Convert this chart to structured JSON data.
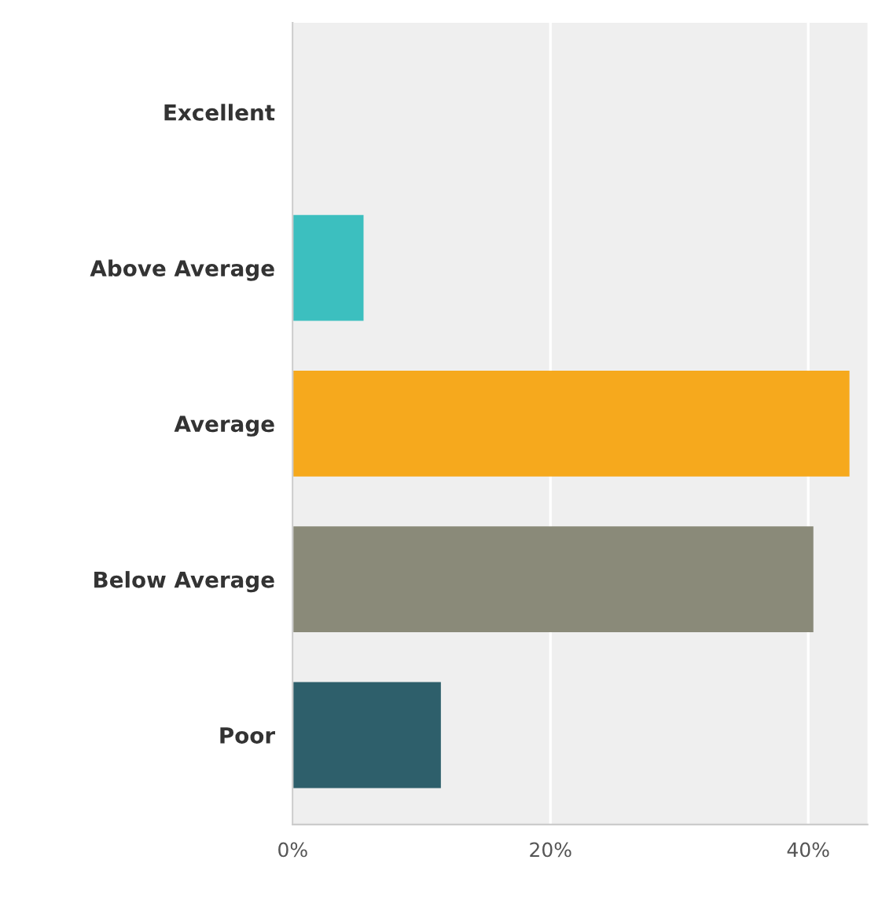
{
  "chart_data": {
    "type": "bar",
    "orientation": "horizontal",
    "categories": [
      "Excellent",
      "Above Average",
      "Average",
      "Below Average",
      "Poor"
    ],
    "values": [
      0,
      5.5,
      43.2,
      40.4,
      11.5
    ],
    "colors": [
      "#3cbfbf",
      "#3cbfbf",
      "#f6a91d",
      "#8a8a79",
      "#2e5f6b"
    ],
    "xlim": [
      0,
      44.6
    ],
    "xticks": [
      {
        "value": 0,
        "label": "0%"
      },
      {
        "value": 20,
        "label": "20%"
      },
      {
        "value": 40,
        "label": "40%"
      }
    ],
    "grid": "x"
  }
}
